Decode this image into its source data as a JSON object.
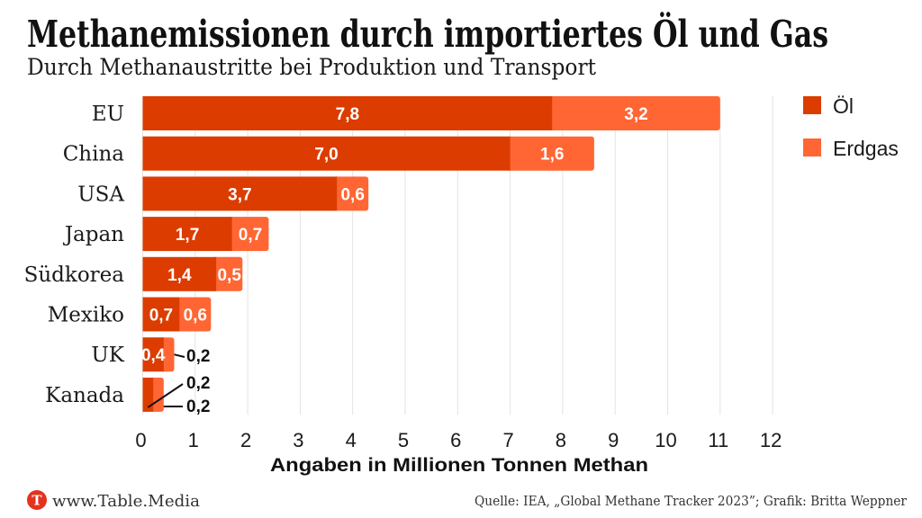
{
  "title": "Methanemissionen durch importiertes Öl und Gas",
  "subtitle": "Durch Methanaustritte bei Produktion und Transport",
  "legend": [
    {
      "label": "Öl",
      "color": "#dc3c00"
    },
    {
      "label": "Erdgas",
      "color": "#ff6633"
    }
  ],
  "footer": {
    "logo_letter": "T",
    "logo_color": "#e3321d",
    "site": "www.Table.Media",
    "source": "Quelle: IEA, „Global Methane Tracker 2023”; Grafik: Britta Weppner"
  },
  "chart_data": {
    "type": "bar",
    "orientation": "horizontal",
    "stacked": true,
    "title": "Methanemissionen durch importiertes Öl und Gas",
    "subtitle": "Durch Methanaustritte bei Produktion und Transport",
    "categories": [
      "EU",
      "China",
      "USA",
      "Japan",
      "Südkorea",
      "Mexiko",
      "UK",
      "Kanada"
    ],
    "series": [
      {
        "name": "Öl",
        "color": "#dc3c00",
        "values": [
          7.8,
          7.0,
          3.7,
          1.7,
          1.4,
          0.7,
          0.4,
          0.2
        ]
      },
      {
        "name": "Erdgas",
        "color": "#ff6633",
        "values": [
          3.2,
          1.6,
          0.6,
          0.7,
          0.5,
          0.6,
          0.2,
          0.2
        ]
      }
    ],
    "xlabel": "Angaben in Millionen Tonnen Methan",
    "ylabel": "",
    "xlim": [
      0,
      12
    ],
    "xticks": [
      0,
      1,
      2,
      3,
      4,
      5,
      6,
      7,
      8,
      9,
      10,
      11,
      12
    ],
    "grid": true,
    "legend_position": "top-right",
    "decimal_separator": ",",
    "data_labels": true
  }
}
